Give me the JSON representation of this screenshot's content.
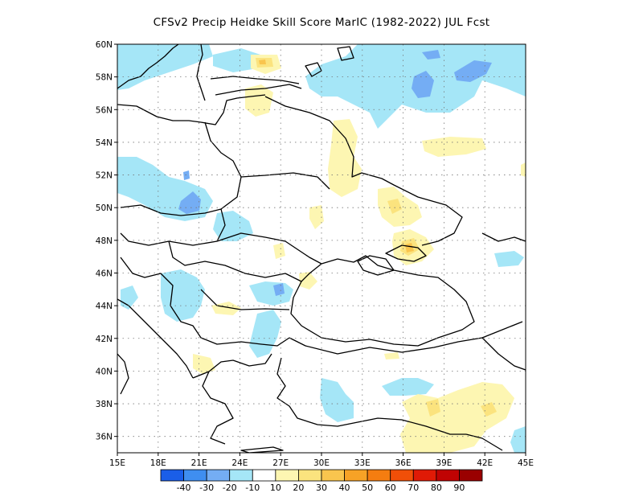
{
  "title": "CFSv2 Precip Heidke Skill Score MarIC (1982-2022) JUL Fcst",
  "map": {
    "lon_range": [
      15,
      45
    ],
    "lat_range": [
      35,
      60
    ],
    "lon_ticks": [
      "15E",
      "18E",
      "21E",
      "24E",
      "27E",
      "30E",
      "33E",
      "36E",
      "39E",
      "42E",
      "45E"
    ],
    "lat_ticks": [
      "36N",
      "38N",
      "40N",
      "42N",
      "44N",
      "46N",
      "48N",
      "50N",
      "52N",
      "54N",
      "56N",
      "58N",
      "60N"
    ],
    "gridlines": "dotted"
  },
  "colorbar": {
    "labels": [
      "-40",
      "-30",
      "-20",
      "-10",
      "10",
      "20",
      "30",
      "40",
      "50",
      "60",
      "70",
      "80",
      "90"
    ],
    "colors": [
      "#1a5ee8",
      "#3f8ef0",
      "#74adf4",
      "#a5e6f7",
      "#ffffff",
      "#fdf6b2",
      "#fbe37e",
      "#f9c54e",
      "#f7a226",
      "#f57d10",
      "#f14f08",
      "#e01a06",
      "#c00303",
      "#9a0000"
    ]
  }
}
